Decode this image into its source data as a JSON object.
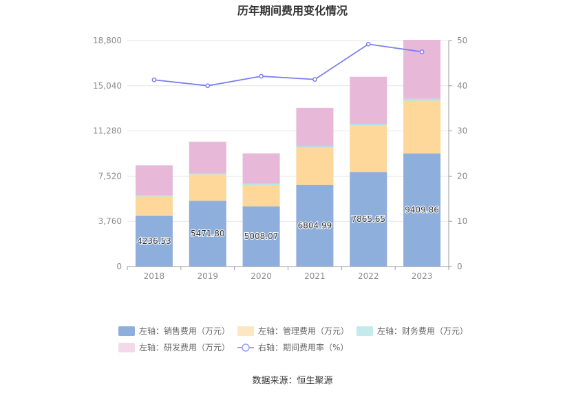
{
  "chart_data": {
    "type": "bar",
    "title": "历年期间费用变化情况",
    "categories": [
      "2018",
      "2019",
      "2020",
      "2021",
      "2022",
      "2023"
    ],
    "left_axis": {
      "ticks": [
        "0",
        "3,760",
        "7,520",
        "11,280",
        "15,040",
        "18,800"
      ],
      "ylim": [
        0,
        18800
      ]
    },
    "right_axis": {
      "ticks": [
        "0",
        "10",
        "20",
        "30",
        "40",
        "50"
      ],
      "ylim": [
        0,
        50
      ]
    },
    "series": [
      {
        "name": "左轴：销售费用（万元）",
        "type": "bar",
        "stack": true,
        "color": "#8eaedb",
        "values": [
          4236.53,
          5471.8,
          5008.07,
          6804.99,
          7865.65,
          9409.86
        ],
        "labels": [
          "4236.53",
          "5471.80",
          "5008.07",
          "6804.99",
          "7865.65",
          "9409.86"
        ]
      },
      {
        "name": "左轴：管理费用（万元）",
        "type": "bar",
        "stack": true,
        "color": "#fdd89a",
        "values": [
          1600,
          2200,
          1800,
          3100,
          3900,
          4400
        ]
      },
      {
        "name": "左轴：财务费用（万元）",
        "type": "bar",
        "stack": true,
        "color": "#a8e4e8",
        "values": [
          90,
          100,
          100,
          100,
          120,
          150
        ]
      },
      {
        "name": "左轴：研发费用（万元）",
        "type": "bar",
        "stack": true,
        "color": "#e8b8d8",
        "values": [
          2500,
          2600,
          2500,
          3200,
          3900,
          4900
        ]
      },
      {
        "name": "右轴：期间费用率（%）",
        "type": "line",
        "axis": "right",
        "color": "#7b7ff0",
        "values": [
          41.3,
          40.0,
          42.1,
          41.4,
          49.2,
          47.5
        ]
      }
    ],
    "grid": true,
    "legend_position": "bottom"
  },
  "legend": {
    "items": [
      {
        "label": "左轴：销售费用（万元）",
        "color": "#8eaedb",
        "kind": "rect"
      },
      {
        "label": "左轴：管理费用（万元）",
        "color": "#fde6c2",
        "kind": "rect"
      },
      {
        "label": "左轴：财务费用（万元）",
        "color": "#c3eaed",
        "kind": "rect"
      },
      {
        "label": "左轴：研发费用（万元）",
        "color": "#f3d9ea",
        "kind": "rect"
      },
      {
        "label": "右轴：期间费用率（%）",
        "color": "#9aa0ef",
        "kind": "line"
      }
    ]
  },
  "source": "数据来源：恒生聚源"
}
